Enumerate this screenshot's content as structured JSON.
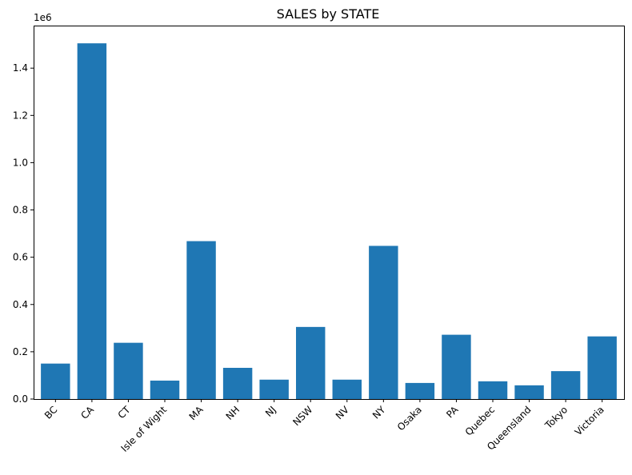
{
  "chart_data": {
    "type": "bar",
    "title": "SALES by STATE",
    "xlabel": "",
    "ylabel": "",
    "y_offset_label": "1e6",
    "bar_color": "#1f77b4",
    "ylim": [
      0,
      1.58
    ],
    "yticks": [
      0.0,
      0.2,
      0.4,
      0.6,
      0.8,
      1.0,
      1.2,
      1.4
    ],
    "ytick_labels": [
      "0.0",
      "0.2",
      "0.4",
      "0.6",
      "0.8",
      "1.0",
      "1.2",
      "1.4"
    ],
    "categories": [
      "BC",
      "CA",
      "CT",
      "Isle of Wight",
      "MA",
      "NH",
      "NJ",
      "NSW",
      "NV",
      "NY",
      "Osaka",
      "PA",
      "Quebec",
      "Queensland",
      "Tokyo",
      "Victoria"
    ],
    "values": [
      0.15,
      1.505,
      0.238,
      0.078,
      0.668,
      0.132,
      0.082,
      0.305,
      0.082,
      0.648,
      0.068,
      0.272,
      0.075,
      0.058,
      0.118,
      0.265
    ],
    "value_multiplier": 1000000,
    "grid": false,
    "legend": "none"
  }
}
